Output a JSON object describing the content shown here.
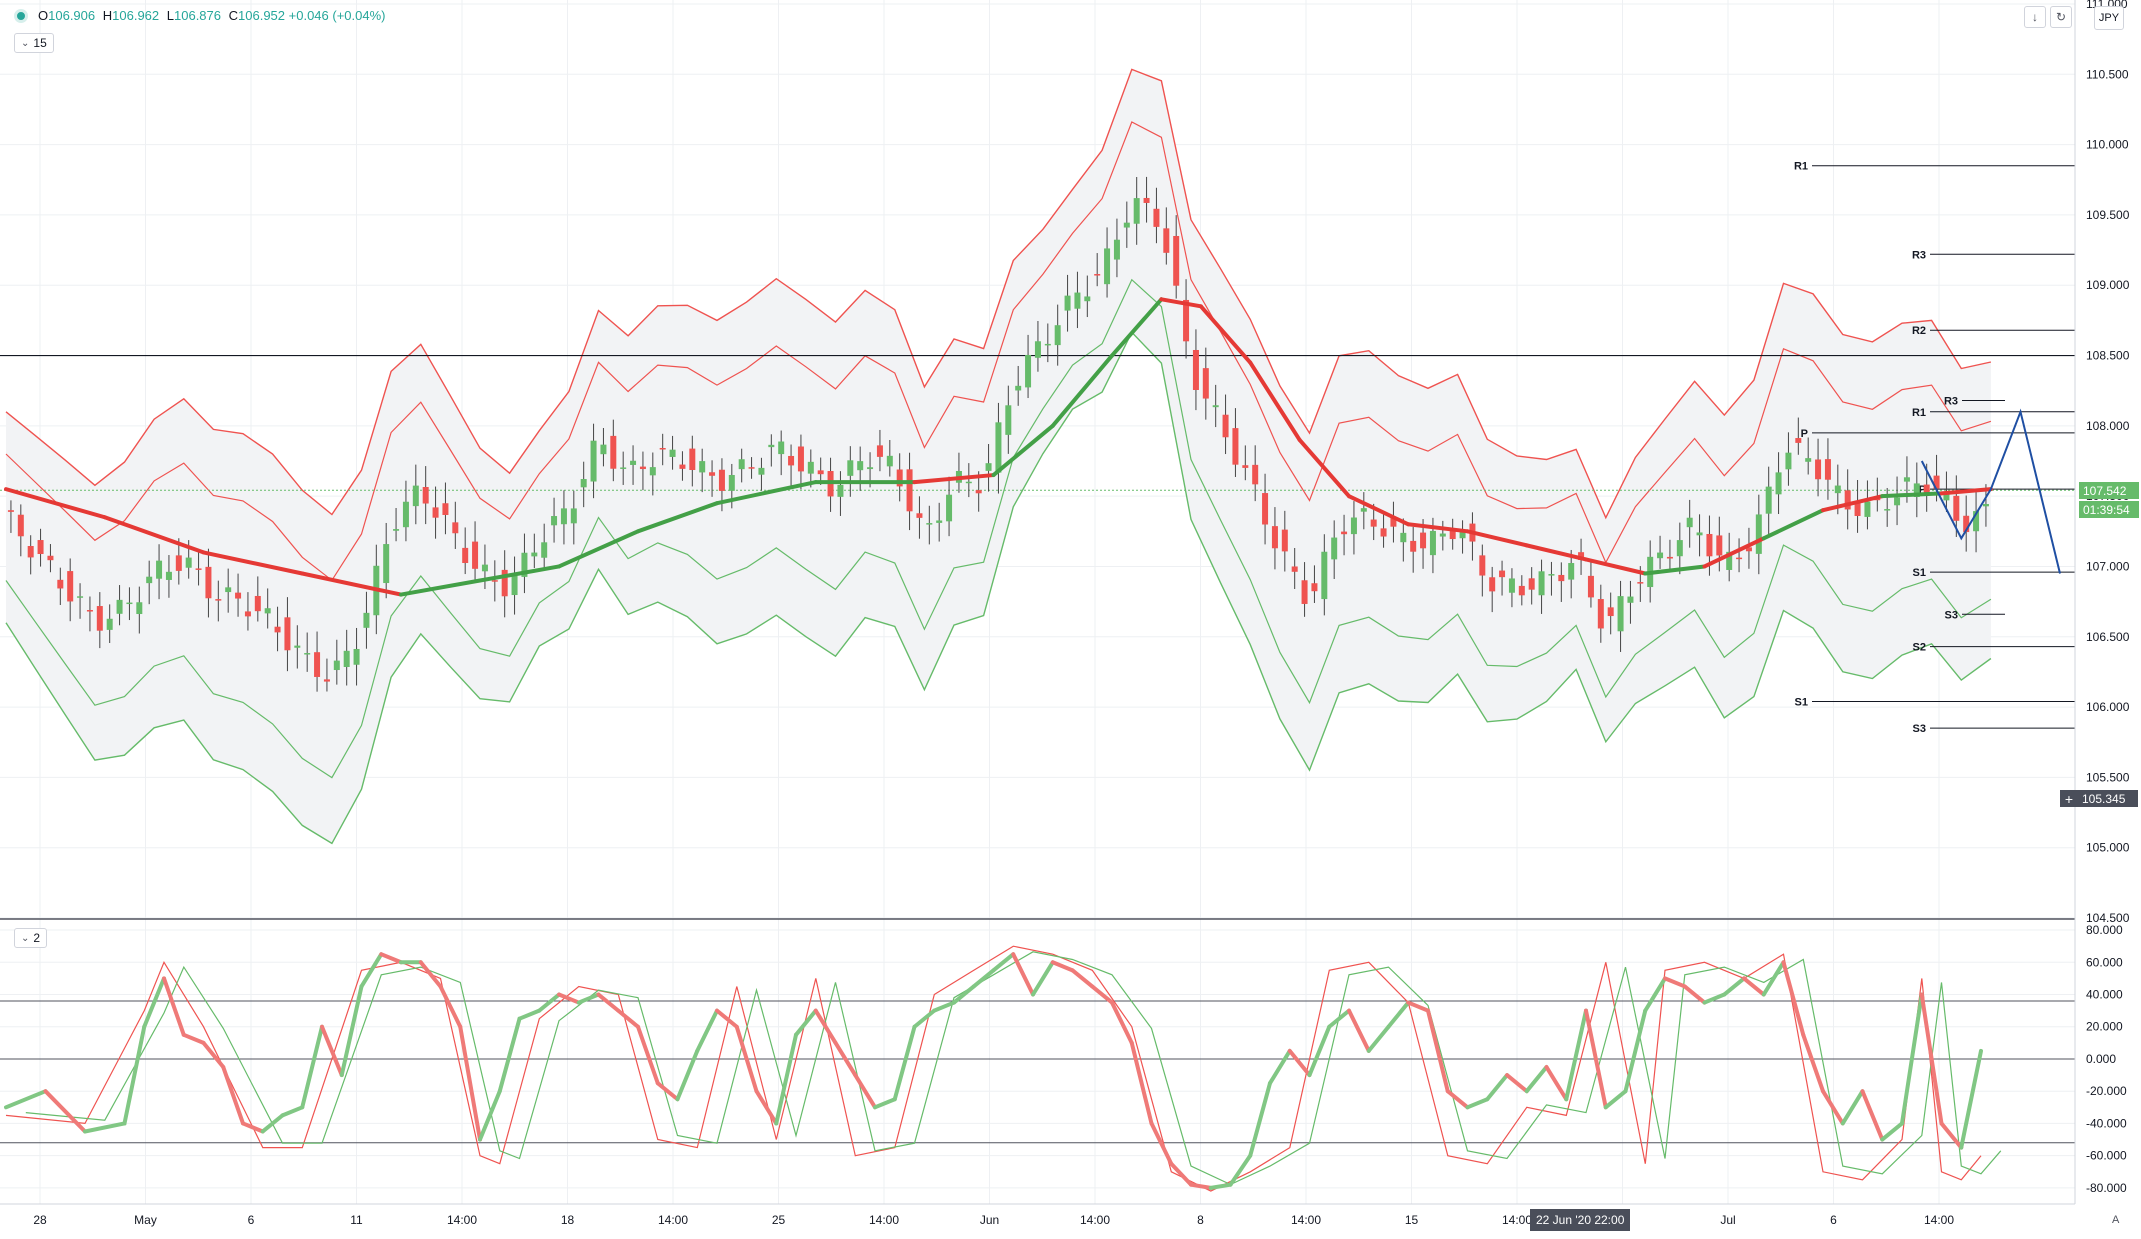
{
  "legend": {
    "O_label": "O",
    "O": "106.906",
    "H_label": "H",
    "H": "106.962",
    "L_label": "L",
    "L": "106.876",
    "C_label": "C",
    "C": "106.952",
    "change": "+0.046 (+0.04%)"
  },
  "pane1_button": "15",
  "pane2_button": "2",
  "currency": "JPY",
  "last_price": "107.542",
  "countdown": "01:39:54",
  "crosshair_price": "105.345",
  "crosshair_date": "22 Jun '20  22:00",
  "scale_mode": "A",
  "colors": {
    "bull": "#66bb6a",
    "bear": "#ef5350",
    "pattern": "#1f4fa3",
    "grid": "#eef0f3",
    "axis_text": "#131722"
  },
  "chart_data": [
    {
      "type": "candlestick",
      "symbol": "USDJPY",
      "ylim": [
        104.5,
        111.0
      ],
      "y_ticks": [
        "104.500",
        "105.000",
        "105.500",
        "106.000",
        "106.500",
        "107.000",
        "107.500",
        "108.000",
        "108.500",
        "109.000",
        "109.500",
        "110.000",
        "110.500",
        "111.000"
      ],
      "x_ticks": [
        "28",
        "May",
        "6",
        "11",
        "14:00",
        "18",
        "14:00",
        "25",
        "14:00",
        "Jun",
        "14:00",
        "8",
        "14:00",
        "15",
        "14:00",
        "25",
        "Jul",
        "6",
        "14:00"
      ],
      "horizontal_line": 108.5,
      "close_path": [
        [
          0,
          107.35
        ],
        [
          3,
          107.1
        ],
        [
          6,
          106.85
        ],
        [
          9,
          106.6
        ],
        [
          12,
          106.7
        ],
        [
          15,
          106.95
        ],
        [
          18,
          107.05
        ],
        [
          21,
          106.8
        ],
        [
          24,
          106.75
        ],
        [
          27,
          106.6
        ],
        [
          30,
          106.35
        ],
        [
          33,
          106.2
        ],
        [
          36,
          106.55
        ],
        [
          39,
          107.3
        ],
        [
          42,
          107.55
        ],
        [
          45,
          107.25
        ],
        [
          48,
          106.95
        ],
        [
          51,
          106.85
        ],
        [
          54,
          107.2
        ],
        [
          57,
          107.4
        ],
        [
          60,
          107.9
        ],
        [
          63,
          107.65
        ],
        [
          66,
          107.8
        ],
        [
          69,
          107.75
        ],
        [
          72,
          107.6
        ],
        [
          75,
          107.7
        ],
        [
          78,
          107.85
        ],
        [
          81,
          107.7
        ],
        [
          84,
          107.55
        ],
        [
          87,
          107.8
        ],
        [
          90,
          107.7
        ],
        [
          93,
          107.2
        ],
        [
          96,
          107.6
        ],
        [
          99,
          107.6
        ],
        [
          102,
          108.3
        ],
        [
          105,
          108.6
        ],
        [
          108,
          108.9
        ],
        [
          111,
          109.1
        ],
        [
          114,
          109.6
        ],
        [
          117,
          109.45
        ],
        [
          120,
          108.4
        ],
        [
          123,
          108.0
        ],
        [
          126,
          107.6
        ],
        [
          129,
          107.1
        ],
        [
          132,
          106.75
        ],
        [
          135,
          107.3
        ],
        [
          138,
          107.35
        ],
        [
          141,
          107.2
        ],
        [
          144,
          107.15
        ],
        [
          147,
          107.3
        ],
        [
          150,
          106.9
        ],
        [
          153,
          106.85
        ],
        [
          156,
          106.9
        ],
        [
          159,
          107.05
        ],
        [
          162,
          106.55
        ],
        [
          165,
          106.9
        ],
        [
          168,
          107.1
        ],
        [
          171,
          107.3
        ],
        [
          174,
          107.0
        ],
        [
          177,
          107.2
        ],
        [
          180,
          107.85
        ],
        [
          183,
          107.75
        ],
        [
          186,
          107.45
        ],
        [
          189,
          107.4
        ],
        [
          192,
          107.55
        ],
        [
          195,
          107.6
        ],
        [
          198,
          107.3
        ],
        [
          201,
          107.4
        ]
      ],
      "ema_path": [
        [
          0,
          107.55
        ],
        [
          10,
          107.35
        ],
        [
          20,
          107.1
        ],
        [
          30,
          106.95
        ],
        [
          40,
          106.8
        ],
        [
          48,
          106.9
        ],
        [
          56,
          107.0
        ],
        [
          64,
          107.25
        ],
        [
          72,
          107.45
        ],
        [
          82,
          107.6
        ],
        [
          92,
          107.6
        ],
        [
          100,
          107.65
        ],
        [
          106,
          108.0
        ],
        [
          112,
          108.5
        ],
        [
          117,
          108.9
        ],
        [
          121,
          108.85
        ],
        [
          126,
          108.45
        ],
        [
          131,
          107.9
        ],
        [
          136,
          107.5
        ],
        [
          142,
          107.3
        ],
        [
          148,
          107.25
        ],
        [
          154,
          107.15
        ],
        [
          160,
          107.05
        ],
        [
          166,
          106.95
        ],
        [
          172,
          107.0
        ],
        [
          178,
          107.2
        ],
        [
          184,
          107.4
        ],
        [
          190,
          107.5
        ],
        [
          196,
          107.52
        ],
        [
          201,
          107.55
        ]
      ],
      "pivot_levels": [
        {
          "label": "R1",
          "value": 109.85
        },
        {
          "label": "R3",
          "value": 109.22
        },
        {
          "label": "R2",
          "value": 108.68
        },
        {
          "label": "R1",
          "value": 108.1
        },
        {
          "label": "P",
          "value": 107.95
        },
        {
          "label": "R3",
          "value": 108.18
        },
        {
          "label": "P",
          "value": 107.55
        },
        {
          "label": "S1",
          "value": 106.96
        },
        {
          "label": "S3",
          "value": 106.66
        },
        {
          "label": "S2",
          "value": 106.43
        },
        {
          "label": "S1",
          "value": 106.04
        },
        {
          "label": "S3",
          "value": 105.85
        }
      ],
      "pattern_path": [
        [
          194,
          107.75
        ],
        [
          198,
          107.2
        ],
        [
          201,
          107.55
        ],
        [
          204,
          108.1
        ],
        [
          208,
          106.95
        ]
      ],
      "last_price": 107.542
    },
    {
      "type": "line",
      "name": "stochastic",
      "ylim": [
        -90,
        85
      ],
      "y_ticks": [
        "80.000",
        "60.000",
        "40.000",
        "20.000",
        "0.000",
        "-20.000",
        "-40.000",
        "-60.000",
        "-80.000"
      ],
      "levels": [
        36,
        0,
        -52
      ],
      "k_path": [
        [
          0,
          -30
        ],
        [
          4,
          -20
        ],
        [
          8,
          -45
        ],
        [
          12,
          -40
        ],
        [
          14,
          20
        ],
        [
          16,
          50
        ],
        [
          18,
          15
        ],
        [
          20,
          10
        ],
        [
          22,
          -5
        ],
        [
          24,
          -40
        ],
        [
          26,
          -45
        ],
        [
          28,
          -35
        ],
        [
          30,
          -30
        ],
        [
          32,
          20
        ],
        [
          34,
          -10
        ],
        [
          36,
          45
        ],
        [
          38,
          65
        ],
        [
          40,
          60
        ],
        [
          42,
          60
        ],
        [
          44,
          45
        ],
        [
          46,
          20
        ],
        [
          48,
          -50
        ],
        [
          50,
          -20
        ],
        [
          52,
          25
        ],
        [
          54,
          30
        ],
        [
          56,
          40
        ],
        [
          58,
          35
        ],
        [
          60,
          40
        ],
        [
          62,
          30
        ],
        [
          64,
          20
        ],
        [
          66,
          -15
        ],
        [
          68,
          -25
        ],
        [
          70,
          5
        ],
        [
          72,
          30
        ],
        [
          74,
          20
        ],
        [
          76,
          -20
        ],
        [
          78,
          -40
        ],
        [
          80,
          15
        ],
        [
          82,
          30
        ],
        [
          84,
          10
        ],
        [
          86,
          -10
        ],
        [
          88,
          -30
        ],
        [
          90,
          -25
        ],
        [
          92,
          20
        ],
        [
          94,
          30
        ],
        [
          96,
          35
        ],
        [
          98,
          45
        ],
        [
          100,
          55
        ],
        [
          102,
          65
        ],
        [
          104,
          40
        ],
        [
          106,
          60
        ],
        [
          108,
          55
        ],
        [
          110,
          45
        ],
        [
          112,
          35
        ],
        [
          114,
          10
        ],
        [
          116,
          -40
        ],
        [
          118,
          -65
        ],
        [
          120,
          -78
        ],
        [
          122,
          -80
        ],
        [
          124,
          -78
        ],
        [
          126,
          -60
        ],
        [
          128,
          -15
        ],
        [
          130,
          5
        ],
        [
          132,
          -10
        ],
        [
          134,
          20
        ],
        [
          136,
          30
        ],
        [
          138,
          5
        ],
        [
          140,
          20
        ],
        [
          142,
          35
        ],
        [
          144,
          30
        ],
        [
          146,
          -20
        ],
        [
          148,
          -30
        ],
        [
          150,
          -25
        ],
        [
          152,
          -10
        ],
        [
          154,
          -20
        ],
        [
          156,
          -5
        ],
        [
          158,
          -25
        ],
        [
          160,
          30
        ],
        [
          162,
          -30
        ],
        [
          164,
          -20
        ],
        [
          166,
          30
        ],
        [
          168,
          50
        ],
        [
          170,
          45
        ],
        [
          172,
          35
        ],
        [
          174,
          40
        ],
        [
          176,
          50
        ],
        [
          178,
          40
        ],
        [
          180,
          60
        ],
        [
          182,
          15
        ],
        [
          184,
          -20
        ],
        [
          186,
          -40
        ],
        [
          188,
          -20
        ],
        [
          190,
          -50
        ],
        [
          192,
          -40
        ],
        [
          194,
          40
        ],
        [
          196,
          -40
        ],
        [
          198,
          -55
        ],
        [
          200,
          5
        ]
      ],
      "d_path": [
        [
          0,
          -35
        ],
        [
          8,
          -40
        ],
        [
          14,
          30
        ],
        [
          16,
          60
        ],
        [
          20,
          20
        ],
        [
          26,
          -55
        ],
        [
          30,
          -55
        ],
        [
          36,
          55
        ],
        [
          40,
          60
        ],
        [
          44,
          50
        ],
        [
          48,
          -60
        ],
        [
          50,
          -65
        ],
        [
          54,
          25
        ],
        [
          58,
          45
        ],
        [
          62,
          40
        ],
        [
          66,
          -50
        ],
        [
          70,
          -55
        ],
        [
          74,
          45
        ],
        [
          78,
          -50
        ],
        [
          82,
          50
        ],
        [
          86,
          -60
        ],
        [
          90,
          -55
        ],
        [
          94,
          40
        ],
        [
          98,
          55
        ],
        [
          102,
          70
        ],
        [
          106,
          65
        ],
        [
          110,
          55
        ],
        [
          114,
          20
        ],
        [
          118,
          -70
        ],
        [
          122,
          -82
        ],
        [
          126,
          -70
        ],
        [
          130,
          -55
        ],
        [
          134,
          55
        ],
        [
          138,
          60
        ],
        [
          142,
          35
        ],
        [
          146,
          -60
        ],
        [
          150,
          -65
        ],
        [
          154,
          -30
        ],
        [
          158,
          -35
        ],
        [
          162,
          60
        ],
        [
          166,
          -65
        ],
        [
          168,
          55
        ],
        [
          172,
          60
        ],
        [
          176,
          50
        ],
        [
          180,
          65
        ],
        [
          184,
          -70
        ],
        [
          188,
          -75
        ],
        [
          192,
          -50
        ],
        [
          194,
          50
        ],
        [
          196,
          -70
        ],
        [
          198,
          -75
        ],
        [
          200,
          -60
        ]
      ]
    }
  ]
}
